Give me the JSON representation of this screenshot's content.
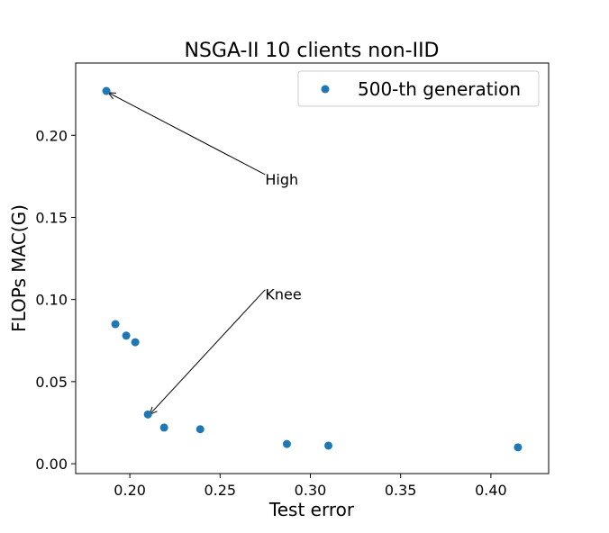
{
  "chart_data": {
    "type": "scatter",
    "title": "NSGA-II 10 clients non-IID",
    "xlabel": "Test error",
    "ylabel": "FLOPs MAC(G)",
    "xlim": [
      0.17,
      0.432
    ],
    "ylim": [
      -0.006,
      0.244
    ],
    "xticks": [
      0.2,
      0.25,
      0.3,
      0.35,
      0.4
    ],
    "xtick_labels": [
      "0.20",
      "0.25",
      "0.30",
      "0.35",
      "0.40"
    ],
    "yticks": [
      0.0,
      0.05,
      0.1,
      0.15,
      0.2
    ],
    "ytick_labels": [
      "0.00",
      "0.05",
      "0.10",
      "0.15",
      "0.20"
    ],
    "grid": false,
    "legend_position": "top-right",
    "color": "#1f77b4",
    "series": [
      {
        "name": "500-th generation",
        "points": [
          {
            "x": 0.187,
            "y": 0.227
          },
          {
            "x": 0.192,
            "y": 0.085
          },
          {
            "x": 0.198,
            "y": 0.078
          },
          {
            "x": 0.203,
            "y": 0.074
          },
          {
            "x": 0.21,
            "y": 0.03
          },
          {
            "x": 0.219,
            "y": 0.022
          },
          {
            "x": 0.239,
            "y": 0.021
          },
          {
            "x": 0.287,
            "y": 0.012
          },
          {
            "x": 0.31,
            "y": 0.011
          },
          {
            "x": 0.415,
            "y": 0.01
          }
        ]
      }
    ],
    "annotations": [
      {
        "text": "High",
        "text_x": 0.275,
        "text_y": 0.17,
        "target_x": 0.188,
        "target_y": 0.226
      },
      {
        "text": "Knee",
        "text_x": 0.275,
        "text_y": 0.1,
        "target_x": 0.211,
        "target_y": 0.03
      }
    ]
  }
}
